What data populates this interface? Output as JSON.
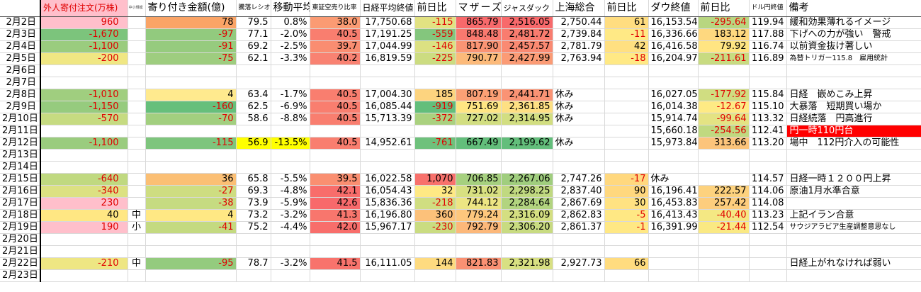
{
  "columns": [
    {
      "key": "date",
      "label": ""
    },
    {
      "key": "foreign",
      "label": "外人寄付注文(万株)",
      "bg": "#FFBFCB",
      "fg": "#e00000"
    },
    {
      "key": "size",
      "label": "中小規模"
    },
    {
      "key": "opening",
      "label": "寄り付き金額(億)"
    },
    {
      "key": "ratio",
      "label": "騰落レシオ"
    },
    {
      "key": "ma",
      "label": "移動平均"
    },
    {
      "key": "short",
      "label": "東証空売り比率"
    },
    {
      "key": "nikkei",
      "label": "日経平均終値"
    },
    {
      "key": "nchg",
      "label": "前日比"
    },
    {
      "key": "mothers",
      "label": "マザーズ"
    },
    {
      "key": "jasdaq",
      "label": "ジャスダック"
    },
    {
      "key": "shanghai",
      "label": "上海総合"
    },
    {
      "key": "schg",
      "label": "前日比"
    },
    {
      "key": "dow",
      "label": "ダウ終値"
    },
    {
      "key": "dchg",
      "label": "前日比"
    },
    {
      "key": "usdjpy",
      "label": "ドル円終値"
    },
    {
      "key": "note",
      "label": "備考"
    }
  ],
  "highlight_colors": {
    "scale_red": "#F8696B",
    "scale_yellow": "#FFE984",
    "scale_green": "#63BE7B",
    "pink": "#FFBFCB",
    "bright_yellow": "#FFFF00",
    "alert_red": "#FF0000",
    "negative_text": "#e00000"
  },
  "rows": [
    {
      "date": "2月2日",
      "cells": {
        "foreign": [
          "960",
          "#FFBFCB",
          "r"
        ],
        "opening": [
          "78",
          "#FAA466"
        ],
        "ratio": [
          "79.5"
        ],
        "ma": [
          "0.8%"
        ],
        "short": [
          "38.0",
          "#FB9B73"
        ],
        "nikkei": [
          "17,750.68"
        ],
        "nchg": [
          "-115",
          "#E2E282",
          "r"
        ],
        "mothers": [
          "865.79",
          "#F8696B"
        ],
        "jasdaq": [
          "2,516.05",
          "#F8696B"
        ],
        "shanghai": [
          "2,750.44"
        ],
        "schg": [
          "61",
          "#FFDD80"
        ],
        "dow": [
          "16,153.54"
        ],
        "dchg": [
          "-295.64",
          "#B8D680",
          "r"
        ],
        "usdjpy": [
          "119.94"
        ],
        "note": [
          "緩和効果薄れるイメージ"
        ]
      }
    },
    {
      "date": "2月3日",
      "cells": {
        "foreign": [
          "-1,670",
          "#7CC47C",
          "r"
        ],
        "opening": [
          "-97",
          "#92CA7E",
          "r"
        ],
        "ratio": [
          "77.1"
        ],
        "ma": [
          "-2.0%"
        ],
        "short": [
          "40.5",
          "#F97E6F"
        ],
        "nikkei": [
          "17,191.25"
        ],
        "nchg": [
          "-559",
          "#84C67D",
          "r"
        ],
        "mothers": [
          "848.48",
          "#F9796F"
        ],
        "jasdaq": [
          "2,481.72",
          "#F97C6F"
        ],
        "shanghai": [
          "2,739.84"
        ],
        "schg": [
          "-11",
          "#FFE985",
          "r"
        ],
        "dow": [
          "16,336.66"
        ],
        "dchg": [
          "183.12",
          "#FED87F"
        ],
        "usdjpy": [
          "117.88"
        ],
        "note": [
          "下げへの力が強い　警戒"
        ]
      }
    },
    {
      "date": "2月4日",
      "cells": {
        "foreign": [
          "-1,100",
          "#9ACC7E",
          "r"
        ],
        "opening": [
          "-91",
          "#96CB7E",
          "r"
        ],
        "ratio": [
          "69.2"
        ],
        "ma": [
          "-2.5%"
        ],
        "short": [
          "39.7",
          "#FA8D71"
        ],
        "nikkei": [
          "17,044.99"
        ],
        "nchg": [
          "-146",
          "#DCE182",
          "r"
        ],
        "mothers": [
          "817.90",
          "#FA9474"
        ],
        "jasdaq": [
          "2,457.57",
          "#FA8A72"
        ],
        "shanghai": [
          "2,781.79"
        ],
        "schg": [
          "42",
          "#FFE081"
        ],
        "dow": [
          "16,416.58"
        ],
        "dchg": [
          "79.92",
          "#FFE582"
        ],
        "usdjpy": [
          "116.74"
        ],
        "note": [
          "以前資金抜け著しい"
        ]
      }
    },
    {
      "date": "2月5日",
      "cells": {
        "foreign": [
          "-200",
          "#F0E783",
          "r"
        ],
        "opening": [
          "-75",
          "#9ECD7F",
          "r"
        ],
        "ratio": [
          "62.1"
        ],
        "ma": [
          "-3.3%"
        ],
        "short": [
          "40.2",
          "#F98272"
        ],
        "nikkei": [
          "16,819.59"
        ],
        "nchg": [
          "-225",
          "#CCDC81",
          "r"
        ],
        "mothers": [
          "790.77",
          "#FCBA7A"
        ],
        "jasdaq": [
          "2,427.99",
          "#FB9B75"
        ],
        "shanghai": [
          "2,763.94"
        ],
        "schg": [
          "-18",
          "#FFE985",
          "r"
        ],
        "dow": [
          "16,204.97"
        ],
        "dchg": [
          "-211.61",
          "#C8DB81",
          "r"
        ],
        "usdjpy": [
          "116.89"
        ],
        "note": [
          "為替トリガー115.8　雇用統計",
          null,
          null,
          "s"
        ]
      }
    },
    {
      "date": "2月6日",
      "cells": {}
    },
    {
      "date": "2月7日",
      "cells": {}
    },
    {
      "date": "2月8日",
      "cells": {
        "foreign": [
          "-1,010",
          "#A0CE7F",
          "r"
        ],
        "opening": [
          "4",
          "#FFEA8E"
        ],
        "ratio": [
          "63.4"
        ],
        "ma": [
          "-1.7%"
        ],
        "short": [
          "40.5",
          "#F97E6F"
        ],
        "nikkei": [
          "17,004.30"
        ],
        "nchg": [
          "185",
          "#FDD47F"
        ],
        "mothers": [
          "807.19",
          "#FBA075"
        ],
        "jasdaq": [
          "2,441.71",
          "#FA9374"
        ],
        "shanghai": [
          "休み"
        ],
        "dow": [
          "16,027.05"
        ],
        "dchg": [
          "-177.92",
          "#D0DD81",
          "r"
        ],
        "usdjpy": [
          "115.84"
        ],
        "note": [
          "日経　嵌めこみ上昇"
        ]
      }
    },
    {
      "date": "2月9日",
      "cells": {
        "foreign": [
          "-1,150",
          "#96CB7E",
          "r"
        ],
        "opening": [
          "-160",
          "#66BF7B",
          "r"
        ],
        "ratio": [
          "62.5"
        ],
        "ma": [
          "-6.9%"
        ],
        "short": [
          "40.5",
          "#F97E6F"
        ],
        "nikkei": [
          "16,085.44"
        ],
        "nchg": [
          "-919",
          "#63BE7B",
          "r"
        ],
        "mothers": [
          "751.69",
          "#FFE683"
        ],
        "jasdaq": [
          "2,361.85",
          "#FEE083"
        ],
        "shanghai": [
          "休み"
        ],
        "dow": [
          "16,014.38"
        ],
        "dchg": [
          "-12.67",
          "#FEEA84",
          "r"
        ],
        "usdjpy": [
          "115.10"
        ],
        "note": [
          "大暴落　短期買い場か"
        ]
      }
    },
    {
      "date": "2月10日",
      "cells": {
        "foreign": [
          "-570",
          "#C6DB81",
          "r"
        ],
        "opening": [
          "-70",
          "#A2CF7F",
          "r"
        ],
        "ratio": [
          "58.6"
        ],
        "ma": [
          "-8.8%"
        ],
        "short": [
          "40.5",
          "#F97E6F"
        ],
        "nikkei": [
          "15,713.39"
        ],
        "nchg": [
          "-372",
          "#AAD17F",
          "r"
        ],
        "mothers": [
          "727.02",
          "#D2DE81"
        ],
        "jasdaq": [
          "2,314.95",
          "#D2DE81"
        ],
        "shanghai": [
          "休み"
        ],
        "dow": [
          "15,914.74"
        ],
        "dchg": [
          "-99.64",
          "#E4E383",
          "r"
        ],
        "usdjpy": [
          "113.32"
        ],
        "note": [
          "日経続落　円高進行"
        ]
      }
    },
    {
      "date": "2月11日",
      "cells": {
        "dow": [
          "15,660.18"
        ],
        "dchg": [
          "-254.56",
          "#C0D980",
          "r"
        ],
        "usdjpy": [
          "112.41"
        ],
        "note": [
          "円一時110円台",
          "#FF0000",
          "w"
        ]
      }
    },
    {
      "date": "2月12日",
      "cells": {
        "foreign": [
          "-1,100",
          "#9ACC7E",
          "r"
        ],
        "opening": [
          "-115",
          "#7EC57D",
          "r"
        ],
        "ratio": [
          "56.9",
          "#FFFF00"
        ],
        "ma": [
          "-13.5%",
          "#FFFF00"
        ],
        "short": [
          "40.5",
          "#F97E6F"
        ],
        "nikkei": [
          "14,952.61"
        ],
        "nchg": [
          "-761",
          "#6FC17C",
          "r"
        ],
        "mothers": [
          "667.49",
          "#63BE7B"
        ],
        "jasdaq": [
          "2,199.62",
          "#63BE7B"
        ],
        "shanghai": [
          "休み"
        ],
        "dow": [
          "15,973.84"
        ],
        "dchg": [
          "313.66",
          "#FCC47B"
        ],
        "usdjpy": [
          "113.20"
        ],
        "note": [
          "場中　112円介入の可能性"
        ]
      }
    },
    {
      "date": "2月13日",
      "cells": {}
    },
    {
      "date": "2月14日",
      "cells": {}
    },
    {
      "date": "2月15日",
      "cells": {
        "foreign": [
          "-640",
          "#C0D980",
          "r"
        ],
        "opening": [
          "36",
          "#FBBF74"
        ],
        "ratio": [
          "65.8"
        ],
        "ma": [
          "-5.5%"
        ],
        "short": [
          "39.5",
          "#FA8F71"
        ],
        "nikkei": [
          "16,022.58"
        ],
        "nchg": [
          "1,070",
          "#F8716C"
        ],
        "mothers": [
          "706.85",
          "#A6D07F"
        ],
        "jasdaq": [
          "2,267.06",
          "#A0CE7E"
        ],
        "shanghai": [
          "2,747.26"
        ],
        "schg": [
          "-17",
          "#FFD87E",
          "r"
        ],
        "dow": [
          "休み"
        ],
        "usdjpy": [
          "114.57"
        ],
        "note": [
          "日経一時１２００円上昇"
        ]
      }
    },
    {
      "date": "2月16日",
      "cells": {
        "foreign": [
          "-340",
          "#DCE182",
          "r"
        ],
        "opening": [
          "-27",
          "#CEDD81",
          "r"
        ],
        "ratio": [
          "69.3"
        ],
        "ma": [
          "-4.8%"
        ],
        "short": [
          "42.1",
          "#F86D6B"
        ],
        "nikkei": [
          "16,054.43"
        ],
        "nchg": [
          "32",
          "#FFE984"
        ],
        "mothers": [
          "731.02",
          "#D8E081"
        ],
        "jasdaq": [
          "2,298.25",
          "#C0D980"
        ],
        "shanghai": [
          "2,837.40"
        ],
        "schg": [
          "90",
          "#FFD87E"
        ],
        "dow": [
          "16,196.41"
        ],
        "dchg": [
          "222.57",
          "#FDD27E"
        ],
        "usdjpy": [
          "114.06"
        ],
        "note": [
          "原油1月水準合意"
        ]
      }
    },
    {
      "date": "2月17日",
      "cells": {
        "foreign": [
          "230",
          "#FFBFCB",
          "r"
        ],
        "opening": [
          "-38",
          "#C6DB81",
          "r"
        ],
        "ratio": [
          "73.9"
        ],
        "ma": [
          "-5.9%"
        ],
        "short": [
          "42.6",
          "#F8696B"
        ],
        "nikkei": [
          "15,836.36"
        ],
        "nchg": [
          "-218",
          "#D0DE81",
          "r"
        ],
        "mothers": [
          "744.12",
          "#EDE583"
        ],
        "jasdaq": [
          "2,284.64",
          "#B2D47F"
        ],
        "shanghai": [
          "2,867.69"
        ],
        "schg": [
          "30",
          "#FFE282"
        ],
        "dow": [
          "16,453.83"
        ],
        "dchg": [
          "257.42",
          "#FDCD7D"
        ],
        "usdjpy": [
          "114.08"
        ]
      }
    },
    {
      "date": "2月18日",
      "cells": {
        "foreign": [
          "40",
          "#FFE783"
        ],
        "size": [
          "中"
        ],
        "opening": [
          "4",
          "#FFE884"
        ],
        "ratio": [
          "73.2"
        ],
        "ma": [
          "-3.2%"
        ],
        "short": [
          "41.3",
          "#F8766D"
        ],
        "nikkei": [
          "16,196.80"
        ],
        "nchg": [
          "360",
          "#FCC17A"
        ],
        "mothers": [
          "779.24",
          "#FDC77D"
        ],
        "jasdaq": [
          "2,316.09",
          "#D4DF81"
        ],
        "shanghai": [
          "2,862.83"
        ],
        "schg": [
          "-5",
          "#FFE884",
          "r"
        ],
        "dow": [
          "16,413.43"
        ],
        "dchg": [
          "-40.40",
          "#F4E883",
          "r"
        ],
        "usdjpy": [
          "113.23"
        ],
        "note": [
          "上記イラン合意"
        ]
      }
    },
    {
      "date": "2月19日",
      "cells": {
        "foreign": [
          "190",
          "#FFBFCB",
          "r"
        ],
        "size": [
          "小"
        ],
        "opening": [
          "-41",
          "#C4DA80",
          "r"
        ],
        "ratio": [
          "75.2"
        ],
        "ma": [
          "-4.4%"
        ],
        "short": [
          "42.0",
          "#F86E6B"
        ],
        "nikkei": [
          "15,967.17"
        ],
        "nchg": [
          "-230",
          "#CADC81",
          "r"
        ],
        "mothers": [
          "792.79",
          "#FCB87A"
        ],
        "jasdaq": [
          "2,306.20",
          "#C8DB81"
        ],
        "shanghai": [
          "2,861.37"
        ],
        "schg": [
          "-1",
          "#FFE884",
          "r"
        ],
        "dow": [
          "16,391.99"
        ],
        "dchg": [
          "-21.44",
          "#FAE983",
          "r"
        ],
        "usdjpy": [
          "112.54"
        ],
        "note": [
          "サウジアラビア生産調整意思なし",
          null,
          null,
          "s"
        ]
      }
    },
    {
      "date": "2月20日",
      "cells": {}
    },
    {
      "date": "2月21日",
      "cells": {}
    },
    {
      "date": "2月22日",
      "cells": {
        "foreign": [
          "-210",
          "#EEE683",
          "r"
        ],
        "size": [
          "中"
        ],
        "opening": [
          "-95",
          "#94CB7E",
          "r"
        ],
        "ratio": [
          "78.7"
        ],
        "ma": [
          "-3.2%"
        ],
        "short": [
          "41.5",
          "#F8736C"
        ],
        "nikkei": [
          "16,111.05"
        ],
        "nchg": [
          "144",
          "#FEDB80"
        ],
        "mothers": [
          "821.83",
          "#FA9173"
        ],
        "jasdaq": [
          "2,321.98",
          "#D8E082"
        ],
        "shanghai": [
          "2,927.73"
        ],
        "schg": [
          "66",
          "#FFDC7F"
        ],
        "note": [
          "日経上がれなければ弱い"
        ]
      }
    },
    {
      "date": "2月23日",
      "cells": {}
    }
  ]
}
